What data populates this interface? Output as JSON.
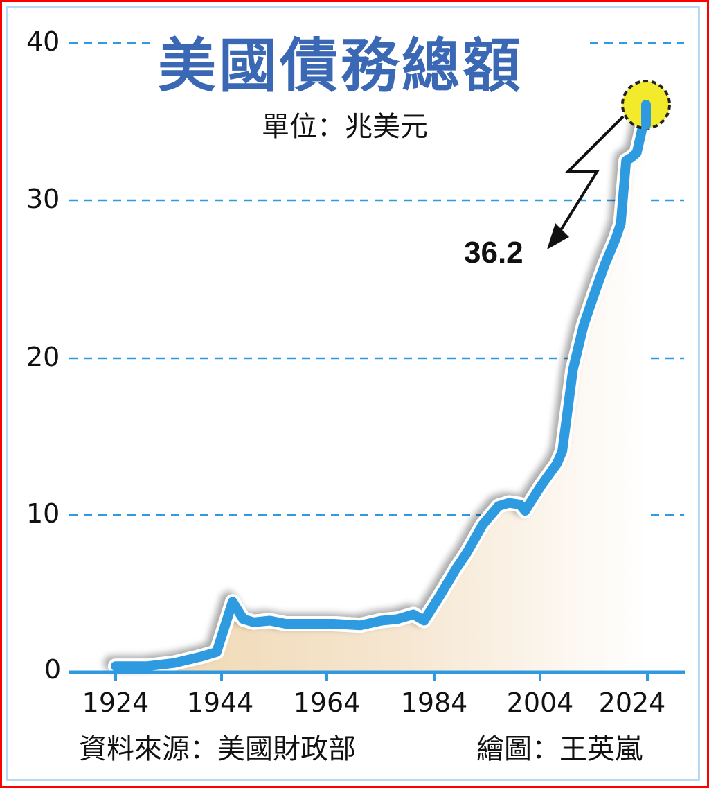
{
  "header": {
    "title": "美國債務總額",
    "unit": "單位：兆美元"
  },
  "footer": {
    "source": "資料來源：美國財政部",
    "credit": "繪圖：王英嵐"
  },
  "annotation": {
    "value_label": "36.2",
    "highlight_color": "#f2ea2a"
  },
  "colors": {
    "line": "#2f9ae0",
    "area_fill": "#f1dcb8",
    "gridline": "#2f9ae0",
    "title": "#3a68b4",
    "frame_outer": "#ff0000",
    "frame_inner": "#b9d8f2"
  },
  "axes": {
    "y_ticks": [
      "0",
      "10",
      "20",
      "30",
      "40"
    ],
    "x_ticks": [
      "1924",
      "1944",
      "1964",
      "1984",
      "2004",
      "2024"
    ]
  },
  "chart_data": {
    "type": "area",
    "title": "美國債務總額",
    "subtitle": "單位：兆美元",
    "xlabel": "",
    "ylabel": "兆美元",
    "ylim": [
      0,
      40
    ],
    "xlim": [
      1924,
      2024
    ],
    "grid": true,
    "legend": "none",
    "x_ticks": [
      1924,
      1944,
      1964,
      1984,
      2004,
      2024
    ],
    "y_ticks": [
      0,
      10,
      20,
      30,
      40
    ],
    "series": [
      {
        "name": "美國債務總額",
        "x": [
          1924,
          1930,
          1935,
          1940,
          1943,
          1946,
          1948,
          1950,
          1953,
          1956,
          1960,
          1965,
          1970,
          1974,
          1977,
          1980,
          1982,
          1985,
          1988,
          1990,
          1993,
          1996,
          1998,
          2000,
          2001,
          2004,
          2007,
          2008,
          2010,
          2012,
          2014,
          2016,
          2018,
          2019,
          2020,
          2021,
          2022,
          2023,
          2024
        ],
        "values": [
          0.3,
          0.3,
          0.5,
          0.9,
          1.2,
          4.4,
          3.3,
          3.1,
          3.2,
          3.0,
          3.0,
          3.0,
          2.9,
          3.2,
          3.3,
          3.6,
          3.2,
          4.8,
          6.5,
          7.5,
          9.3,
          10.5,
          10.7,
          10.6,
          10.2,
          11.8,
          13.2,
          14.0,
          19.2,
          22.0,
          24.0,
          25.9,
          27.5,
          28.5,
          32.5,
          32.7,
          33.0,
          34.5,
          36.2
        ]
      }
    ],
    "annotations": [
      {
        "x": 2024,
        "y": 36.2,
        "text": "36.2"
      }
    ],
    "footer": [
      "資料來源：美國財政部",
      "繪圖：王英嵐"
    ]
  }
}
